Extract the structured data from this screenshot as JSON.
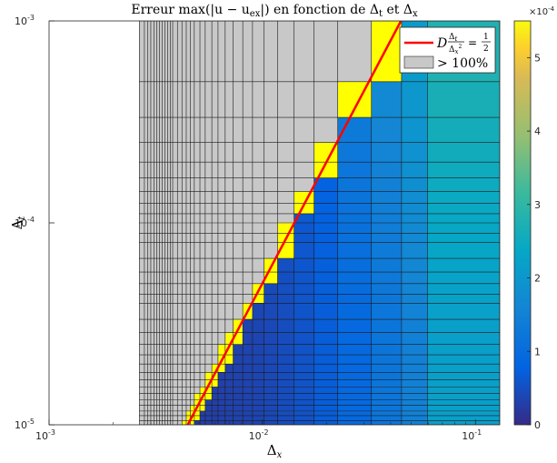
{
  "chart_data": {
    "type": "heatmap",
    "title": "Erreur max(|u − u",
    "title_sub": "ex",
    "title_rest": "|) en fonction de Δ",
    "title_t": "t",
    "title_et": " et Δ",
    "title_x": "x",
    "xlabel": "Δ",
    "xlabel_sub": "x",
    "ylabel": "Δ",
    "ylabel_sub": "t",
    "x_scale": "log",
    "y_scale": "log",
    "xlim": [
      0.001,
      0.13
    ],
    "ylim": [
      1e-05,
      0.001
    ],
    "x_ticks": [
      {
        "value": 0.001,
        "base": "10",
        "exp": "-3"
      },
      {
        "value": 0.01,
        "base": "10",
        "exp": "-2"
      },
      {
        "value": 0.1,
        "base": "10",
        "exp": "-1"
      }
    ],
    "y_ticks": [
      {
        "value": 1e-05,
        "base": "10",
        "exp": "-5"
      },
      {
        "value": 0.0001,
        "base": "10",
        "exp": "-4"
      },
      {
        "value": 0.001,
        "base": "10",
        "exp": "-3"
      }
    ],
    "colorbar": {
      "min": 0,
      "max": 0.00055,
      "ticks": [
        "0",
        "1",
        "2",
        "3",
        "4",
        "5"
      ],
      "multiplier_base": "×10",
      "multiplier_exp": "-4",
      "colormap": "parula"
    },
    "grid_x_edges": [
      0.00265,
      0.0028,
      0.0029,
      0.003,
      0.0031,
      0.0032,
      0.0033,
      0.0034,
      0.0035,
      0.0036,
      0.0037,
      0.0038,
      0.004,
      0.0042,
      0.0044,
      0.0046,
      0.0048,
      0.0051,
      0.0054,
      0.0058,
      0.0062,
      0.0067,
      0.0073,
      0.0081,
      0.009,
      0.0102,
      0.0118,
      0.0141,
      0.0175,
      0.0226,
      0.0325,
      0.045,
      0.0595,
      0.13
    ],
    "grid_y_edges": [
      1e-05,
      1.05e-05,
      1.11e-05,
      1.17e-05,
      1.25e-05,
      1.33e-05,
      1.43e-05,
      1.54e-05,
      1.67e-05,
      1.82e-05,
      2e-05,
      2.22e-05,
      2.5e-05,
      2.86e-05,
      3.33e-05,
      4e-05,
      4.44e-05,
      5e-05,
      5.71e-05,
      6.67e-05,
      8e-05,
      8.89e-05,
      0.0001,
      0.000111,
      0.000125,
      0.000143,
      0.000167,
      0.0002,
      0.00025,
      0.000333,
      0.0005,
      0.001
    ],
    "stability_line": {
      "label_D": "D",
      "label_frac_num": "Δ",
      "label_frac_num_sub": "t",
      "label_frac_den": "Δ",
      "label_frac_den_sub": "x",
      "label_den_exp": "2",
      "label_eq": "=",
      "label_half_num": "1",
      "label_half_den": "2",
      "coefficient": 0.5,
      "D": 1,
      "color": "#ff0000"
    },
    "overflow_label": "> 100%",
    "overflow_color": "#c8c8c8",
    "boundary_color": "#ffff00",
    "legend_position": "top-right"
  }
}
